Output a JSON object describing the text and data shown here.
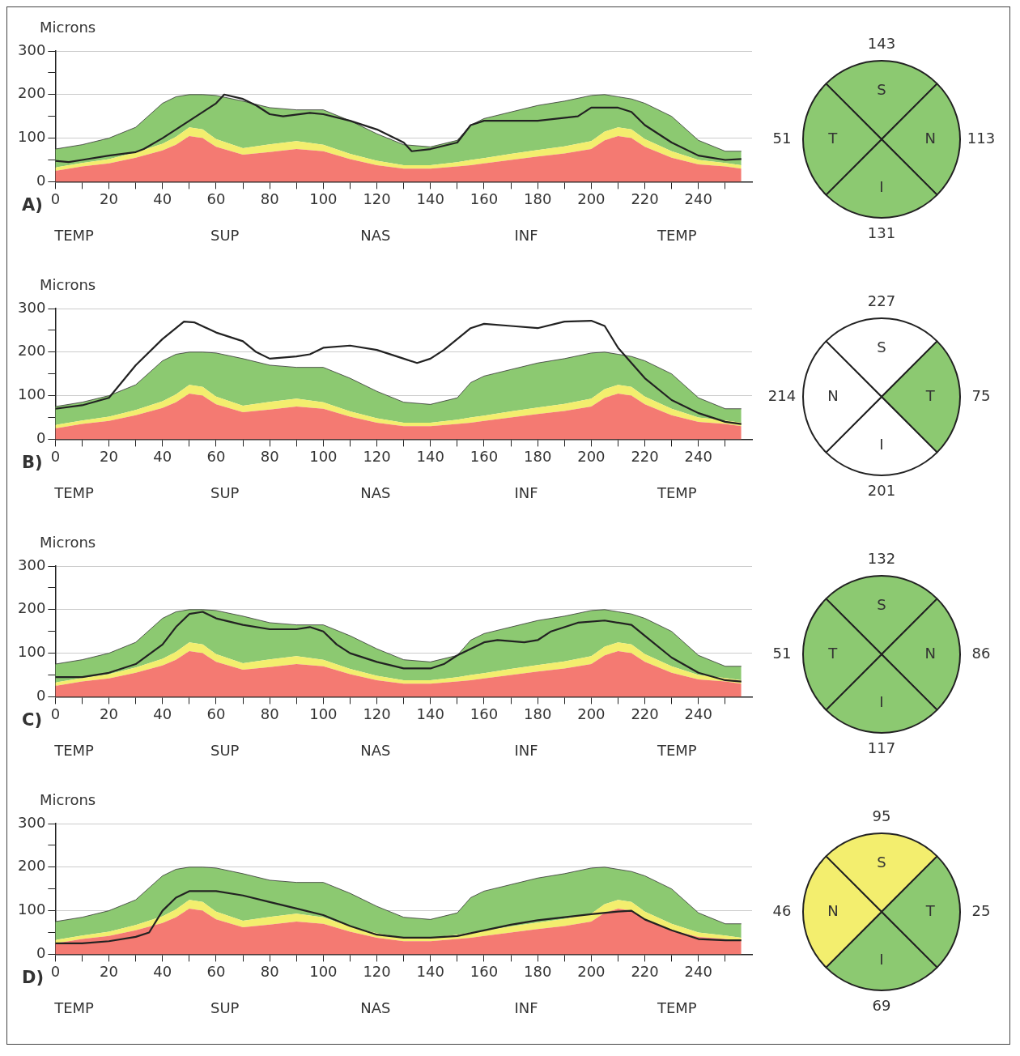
{
  "chart_data": [
    {
      "type": "area",
      "ylabel": "Microns",
      "annotations": [
        "A)",
        "TEMP",
        "SUP",
        "NAS",
        "INF",
        "TEMP"
      ],
      "stacked": true,
      "grid": "y",
      "x": [
        0,
        10,
        20,
        30,
        40,
        45,
        50,
        55,
        60,
        70,
        80,
        90,
        100,
        110,
        120,
        130,
        140,
        150,
        155,
        160,
        170,
        180,
        190,
        200,
        205,
        210,
        215,
        220,
        230,
        240,
        250,
        256
      ],
      "series": [
        {
          "color": "#f47a72",
          "values": [
            25,
            35,
            42,
            55,
            72,
            85,
            105,
            100,
            80,
            62,
            68,
            75,
            70,
            52,
            38,
            30,
            30,
            35,
            38,
            42,
            50,
            58,
            65,
            75,
            95,
            105,
            100,
            80,
            55,
            40,
            35,
            30
          ]
        },
        {
          "color": "#f3ee6e",
          "values": [
            8,
            8,
            10,
            12,
            15,
            18,
            20,
            20,
            18,
            15,
            18,
            18,
            15,
            12,
            10,
            8,
            8,
            10,
            12,
            12,
            14,
            15,
            16,
            18,
            20,
            20,
            20,
            18,
            15,
            10,
            8,
            8
          ]
        },
        {
          "color": "#8cc971",
          "values": [
            42,
            42,
            48,
            58,
            93,
            92,
            75,
            80,
            100,
            108,
            84,
            72,
            80,
            76,
            62,
            47,
            42,
            50,
            80,
            91,
            96,
            102,
            104,
            105,
            85,
            70,
            70,
            82,
            80,
            45,
            27,
            32
          ]
        },
        {
          "type": "line",
          "color": "#222222",
          "x": [
            0,
            5,
            10,
            20,
            30,
            33,
            40,
            50,
            60,
            63,
            70,
            75,
            80,
            85,
            95,
            100,
            110,
            120,
            130,
            133,
            140,
            150,
            155,
            160,
            180,
            195,
            200,
            210,
            215,
            220,
            230,
            240,
            250,
            256
          ],
          "values": [
            48,
            45,
            50,
            60,
            68,
            75,
            100,
            140,
            180,
            200,
            190,
            175,
            155,
            150,
            158,
            155,
            140,
            120,
            90,
            70,
            75,
            90,
            130,
            140,
            140,
            150,
            170,
            170,
            160,
            130,
            90,
            60,
            50,
            52
          ]
        }
      ],
      "xlim": [
        0,
        260
      ],
      "xticks": [
        0,
        {
          "value": 10,
          "label": null
        },
        20,
        {
          "value": 30,
          "label": null
        },
        40,
        {
          "value": 50,
          "label": null
        },
        60,
        {
          "value": 70,
          "label": null
        },
        80,
        {
          "value": 90,
          "label": null
        },
        100,
        {
          "value": 110,
          "label": null
        },
        120,
        {
          "value": 130,
          "label": null
        },
        140,
        {
          "value": 150,
          "label": null
        },
        160,
        {
          "value": 170,
          "label": null
        },
        180,
        {
          "value": 190,
          "label": null
        },
        200,
        {
          "value": 210,
          "label": null
        },
        220,
        {
          "value": 230,
          "label": null
        },
        240,
        {
          "value": 250,
          "label": null
        }
      ],
      "ylim": [
        0,
        300
      ],
      "yticks": [
        0,
        {
          "value": 50,
          "label": null
        },
        100,
        {
          "value": 150,
          "label": null
        },
        200,
        {
          "value": 250,
          "label": null
        },
        300
      ]
    },
    {
      "type": "other",
      "categories": [
        "S",
        "N",
        "I",
        "T"
      ],
      "values": [
        143,
        113,
        131,
        51
      ],
      "data_labels": true,
      "colors": [
        "#8cc971",
        "#8cc971",
        "#8cc971",
        "#8cc971"
      ]
    },
    {
      "type": "area",
      "ylabel": "Microns",
      "annotations": [
        "B)",
        "TEMP",
        "SUP",
        "NAS",
        "INF",
        "TEMP"
      ],
      "stacked": true,
      "grid": "y",
      "x": [
        0,
        10,
        20,
        30,
        40,
        45,
        50,
        55,
        60,
        70,
        80,
        90,
        100,
        110,
        120,
        130,
        140,
        150,
        155,
        160,
        170,
        180,
        190,
        200,
        205,
        210,
        215,
        220,
        230,
        240,
        250,
        256
      ],
      "series": [
        {
          "color": "#f47a72",
          "values": [
            25,
            35,
            42,
            55,
            72,
            85,
            105,
            100,
            80,
            62,
            68,
            75,
            70,
            52,
            38,
            30,
            30,
            35,
            38,
            42,
            50,
            58,
            65,
            75,
            95,
            105,
            100,
            80,
            55,
            40,
            35,
            30
          ]
        },
        {
          "color": "#f3ee6e",
          "values": [
            8,
            8,
            10,
            12,
            15,
            18,
            20,
            20,
            18,
            15,
            18,
            18,
            15,
            12,
            10,
            8,
            8,
            10,
            12,
            12,
            14,
            15,
            16,
            18,
            20,
            20,
            20,
            18,
            15,
            10,
            8,
            8
          ]
        },
        {
          "color": "#8cc971",
          "values": [
            42,
            42,
            48,
            58,
            93,
            92,
            75,
            80,
            100,
            108,
            84,
            72,
            80,
            76,
            62,
            47,
            42,
            50,
            80,
            91,
            96,
            102,
            104,
            105,
            85,
            70,
            70,
            82,
            80,
            45,
            27,
            32
          ]
        },
        {
          "type": "line",
          "color": "#222222",
          "x": [
            0,
            10,
            20,
            30,
            40,
            48,
            52,
            60,
            70,
            75,
            80,
            90,
            95,
            100,
            110,
            120,
            130,
            135,
            140,
            145,
            150,
            155,
            160,
            170,
            180,
            190,
            200,
            205,
            210,
            220,
            230,
            240,
            250,
            256
          ],
          "values": [
            70,
            78,
            95,
            170,
            230,
            270,
            268,
            245,
            225,
            200,
            185,
            190,
            195,
            210,
            215,
            205,
            185,
            175,
            185,
            205,
            230,
            255,
            265,
            260,
            255,
            270,
            272,
            260,
            210,
            140,
            90,
            60,
            40,
            35
          ]
        }
      ],
      "xlim": [
        0,
        260
      ],
      "xticks": [
        0,
        {
          "value": 10,
          "label": null
        },
        20,
        {
          "value": 30,
          "label": null
        },
        40,
        {
          "value": 50,
          "label": null
        },
        60,
        {
          "value": 70,
          "label": null
        },
        80,
        {
          "value": 90,
          "label": null
        },
        100,
        {
          "value": 110,
          "label": null
        },
        120,
        {
          "value": 130,
          "label": null
        },
        140,
        {
          "value": 150,
          "label": null
        },
        160,
        {
          "value": 170,
          "label": null
        },
        180,
        {
          "value": 190,
          "label": null
        },
        200,
        {
          "value": 210,
          "label": null
        },
        220,
        {
          "value": 230,
          "label": null
        },
        240,
        {
          "value": 250,
          "label": null
        }
      ],
      "ylim": [
        0,
        300
      ],
      "yticks": [
        0,
        {
          "value": 50,
          "label": null
        },
        100,
        {
          "value": 150,
          "label": null
        },
        200,
        {
          "value": 250,
          "label": null
        },
        300
      ]
    },
    {
      "type": "other",
      "categories": [
        "S",
        "T",
        "I",
        "N"
      ],
      "values": [
        227,
        75,
        201,
        214
      ],
      "data_labels": true,
      "colors": [
        "#ffffff",
        "#8cc971",
        "#ffffff",
        "#ffffff"
      ]
    },
    {
      "type": "area",
      "ylabel": "Microns",
      "annotations": [
        "C)",
        "TEMP",
        "SUP",
        "NAS",
        "INF",
        "TEMP"
      ],
      "stacked": true,
      "grid": "y",
      "x": [
        0,
        10,
        20,
        30,
        40,
        45,
        50,
        55,
        60,
        70,
        80,
        90,
        100,
        110,
        120,
        130,
        140,
        150,
        155,
        160,
        170,
        180,
        190,
        200,
        205,
        210,
        215,
        220,
        230,
        240,
        250,
        256
      ],
      "series": [
        {
          "color": "#f47a72",
          "values": [
            25,
            35,
            42,
            55,
            72,
            85,
            105,
            100,
            80,
            62,
            68,
            75,
            70,
            52,
            38,
            30,
            30,
            35,
            38,
            42,
            50,
            58,
            65,
            75,
            95,
            105,
            100,
            80,
            55,
            40,
            35,
            30
          ]
        },
        {
          "color": "#f3ee6e",
          "values": [
            8,
            8,
            10,
            12,
            15,
            18,
            20,
            20,
            18,
            15,
            18,
            18,
            15,
            12,
            10,
            8,
            8,
            10,
            12,
            12,
            14,
            15,
            16,
            18,
            20,
            20,
            20,
            18,
            15,
            10,
            8,
            8
          ]
        },
        {
          "color": "#8cc971",
          "values": [
            42,
            42,
            48,
            58,
            93,
            92,
            75,
            80,
            100,
            108,
            84,
            72,
            80,
            76,
            62,
            47,
            42,
            50,
            80,
            91,
            96,
            102,
            104,
            105,
            85,
            70,
            70,
            82,
            80,
            45,
            27,
            32
          ]
        },
        {
          "type": "line",
          "color": "#222222",
          "x": [
            0,
            10,
            20,
            30,
            40,
            45,
            50,
            55,
            60,
            70,
            80,
            90,
            95,
            100,
            105,
            110,
            120,
            130,
            140,
            145,
            150,
            160,
            165,
            175,
            180,
            185,
            195,
            205,
            215,
            220,
            230,
            240,
            250,
            256
          ],
          "values": [
            45,
            45,
            55,
            75,
            120,
            160,
            190,
            195,
            180,
            165,
            155,
            155,
            160,
            150,
            120,
            100,
            80,
            65,
            65,
            75,
            95,
            125,
            130,
            125,
            130,
            150,
            170,
            175,
            165,
            140,
            90,
            55,
            38,
            35
          ]
        }
      ],
      "xlim": [
        0,
        260
      ],
      "xticks": [
        0,
        {
          "value": 10,
          "label": null
        },
        20,
        {
          "value": 30,
          "label": null
        },
        40,
        {
          "value": 50,
          "label": null
        },
        60,
        {
          "value": 70,
          "label": null
        },
        80,
        {
          "value": 90,
          "label": null
        },
        100,
        {
          "value": 110,
          "label": null
        },
        120,
        {
          "value": 130,
          "label": null
        },
        140,
        {
          "value": 150,
          "label": null
        },
        160,
        {
          "value": 170,
          "label": null
        },
        180,
        {
          "value": 190,
          "label": null
        },
        200,
        {
          "value": 210,
          "label": null
        },
        220,
        {
          "value": 230,
          "label": null
        },
        240,
        {
          "value": 250,
          "label": null
        }
      ],
      "ylim": [
        0,
        300
      ],
      "yticks": [
        0,
        {
          "value": 50,
          "label": null
        },
        100,
        {
          "value": 150,
          "label": null
        },
        200,
        {
          "value": 250,
          "label": null
        },
        300
      ]
    },
    {
      "type": "other",
      "categories": [
        "S",
        "N",
        "I",
        "T"
      ],
      "values": [
        132,
        86,
        117,
        51
      ],
      "data_labels": true,
      "colors": [
        "#8cc971",
        "#8cc971",
        "#8cc971",
        "#8cc971"
      ]
    },
    {
      "type": "area",
      "ylabel": "Microns",
      "annotations": [
        "D)",
        "TEMP",
        "SUP",
        "NAS",
        "INF",
        "TEMP"
      ],
      "stacked": true,
      "grid": "y",
      "x": [
        0,
        10,
        20,
        30,
        40,
        45,
        50,
        55,
        60,
        70,
        80,
        90,
        100,
        110,
        120,
        130,
        140,
        150,
        155,
        160,
        170,
        180,
        190,
        200,
        205,
        210,
        215,
        220,
        230,
        240,
        250,
        256
      ],
      "series": [
        {
          "color": "#f47a72",
          "values": [
            25,
            35,
            42,
            55,
            72,
            85,
            105,
            100,
            80,
            62,
            68,
            75,
            70,
            52,
            38,
            30,
            30,
            35,
            38,
            42,
            50,
            58,
            65,
            75,
            95,
            105,
            100,
            80,
            55,
            40,
            35,
            30
          ]
        },
        {
          "color": "#f3ee6e",
          "values": [
            8,
            8,
            10,
            12,
            15,
            18,
            20,
            20,
            18,
            15,
            18,
            18,
            15,
            12,
            10,
            8,
            8,
            10,
            12,
            12,
            14,
            15,
            16,
            18,
            20,
            20,
            20,
            18,
            15,
            10,
            8,
            8
          ]
        },
        {
          "color": "#8cc971",
          "values": [
            42,
            42,
            48,
            58,
            93,
            92,
            75,
            80,
            100,
            108,
            84,
            72,
            80,
            76,
            62,
            47,
            42,
            50,
            80,
            91,
            96,
            102,
            104,
            105,
            85,
            70,
            70,
            82,
            80,
            45,
            27,
            32
          ]
        },
        {
          "type": "line",
          "color": "#222222",
          "x": [
            0,
            10,
            20,
            30,
            35,
            40,
            45,
            50,
            60,
            70,
            80,
            90,
            100,
            110,
            120,
            130,
            140,
            150,
            160,
            170,
            180,
            190,
            200,
            210,
            215,
            220,
            230,
            240,
            250,
            256
          ],
          "values": [
            25,
            25,
            30,
            40,
            50,
            100,
            130,
            145,
            145,
            135,
            120,
            105,
            90,
            65,
            45,
            38,
            38,
            42,
            55,
            68,
            78,
            85,
            92,
            98,
            100,
            80,
            55,
            35,
            32,
            32
          ]
        }
      ],
      "xlim": [
        0,
        260
      ],
      "xticks": [
        0,
        {
          "value": 10,
          "label": null
        },
        20,
        {
          "value": 30,
          "label": null
        },
        40,
        {
          "value": 50,
          "label": null
        },
        60,
        {
          "value": 70,
          "label": null
        },
        80,
        {
          "value": 90,
          "label": null
        },
        100,
        {
          "value": 110,
          "label": null
        },
        120,
        {
          "value": 130,
          "label": null
        },
        140,
        {
          "value": 150,
          "label": null
        },
        160,
        {
          "value": 170,
          "label": null
        },
        180,
        {
          "value": 190,
          "label": null
        },
        200,
        {
          "value": 210,
          "label": null
        },
        220,
        {
          "value": 230,
          "label": null
        },
        240,
        {
          "value": 250,
          "label": null
        }
      ],
      "ylim": [
        0,
        300
      ],
      "yticks": [
        0,
        {
          "value": 50,
          "label": null
        },
        100,
        {
          "value": 150,
          "label": null
        },
        200,
        {
          "value": 250,
          "label": null
        },
        300
      ]
    },
    {
      "type": "other",
      "categories": [
        "S",
        "T",
        "I",
        "N"
      ],
      "values": [
        95,
        25,
        69,
        46
      ],
      "data_labels": true,
      "colors": [
        "#f3ee6e",
        "#8cc971",
        "#8cc971",
        "#f3ee6e"
      ]
    }
  ]
}
